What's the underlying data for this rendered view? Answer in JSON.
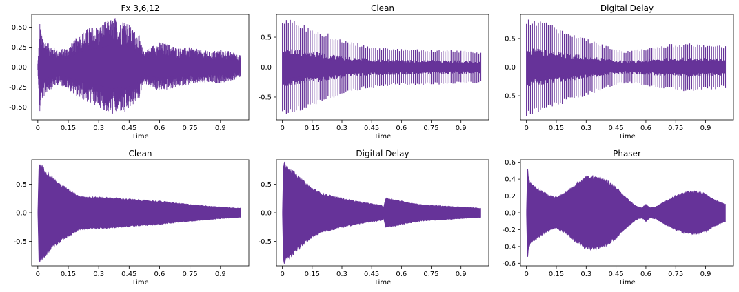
{
  "figure": {
    "background": "#ffffff",
    "waveform_color": "#663399"
  },
  "chart_data": [
    {
      "type": "area",
      "title": "Fx 3,6,12",
      "xlabel": "Time",
      "ylabel": "",
      "xlim": [
        -0.03,
        1.04
      ],
      "ylim": [
        -0.66,
        0.66
      ],
      "xticks": [
        "0",
        "0.15",
        "0.3",
        "0.45",
        "0.6",
        "0.75",
        "0.9"
      ],
      "yticks": [
        "-0.50",
        "-0.25",
        "0.00",
        "0.25",
        "0.50"
      ],
      "envelope_points": {
        "x": [
          0,
          0.01,
          0.02,
          0.05,
          0.1,
          0.15,
          0.2,
          0.25,
          0.3,
          0.35,
          0.38,
          0.4,
          0.43,
          0.46,
          0.5,
          0.52,
          0.55,
          0.6,
          0.65,
          0.7,
          0.75,
          0.8,
          0.85,
          0.9,
          0.95,
          1.0
        ],
        "upper": [
          0.05,
          0.58,
          0.4,
          0.3,
          0.22,
          0.25,
          0.4,
          0.5,
          0.52,
          0.6,
          0.63,
          0.55,
          0.62,
          0.5,
          0.4,
          0.2,
          0.25,
          0.32,
          0.28,
          0.24,
          0.25,
          0.22,
          0.2,
          0.22,
          0.2,
          0.15
        ],
        "lower": [
          -0.05,
          -0.6,
          -0.42,
          -0.3,
          -0.22,
          -0.28,
          -0.38,
          -0.45,
          -0.5,
          -0.58,
          -0.6,
          -0.55,
          -0.6,
          -0.5,
          -0.4,
          -0.2,
          -0.25,
          -0.3,
          -0.28,
          -0.24,
          -0.22,
          -0.2,
          -0.2,
          -0.2,
          -0.18,
          -0.12
        ]
      },
      "style": "dense",
      "grid": false
    },
    {
      "type": "area",
      "title": "Clean",
      "xlabel": "Time",
      "ylabel": "",
      "xlim": [
        -0.03,
        1.04
      ],
      "ylim": [
        -0.88,
        0.88
      ],
      "xticks": [
        "0",
        "0.15",
        "0.3",
        "0.45",
        "0.6",
        "0.75",
        "0.9"
      ],
      "yticks": [
        "-0.5",
        "0.0",
        "0.5"
      ],
      "envelope_points": {
        "x": [
          0,
          0.03,
          0.05,
          0.1,
          0.2,
          0.3,
          0.4,
          0.5,
          0.6,
          0.7,
          0.8,
          0.9,
          1.0
        ],
        "upper": [
          0.75,
          0.82,
          0.8,
          0.72,
          0.6,
          0.47,
          0.38,
          0.33,
          0.31,
          0.3,
          0.29,
          0.28,
          0.26
        ],
        "lower": [
          -0.75,
          -0.83,
          -0.8,
          -0.72,
          -0.6,
          -0.47,
          -0.38,
          -0.33,
          -0.31,
          -0.3,
          -0.29,
          -0.28,
          -0.26
        ]
      },
      "style": "spiky",
      "grid": false
    },
    {
      "type": "area",
      "title": "Digital Delay",
      "xlabel": "Time",
      "ylabel": "",
      "xlim": [
        -0.03,
        1.04
      ],
      "ylim": [
        -0.92,
        0.92
      ],
      "xticks": [
        "0",
        "0.15",
        "0.3",
        "0.45",
        "0.6",
        "0.75",
        "0.9"
      ],
      "yticks": [
        "-0.5",
        "0.0",
        "0.5"
      ],
      "envelope_points": {
        "x": [
          0,
          0.03,
          0.1,
          0.2,
          0.3,
          0.4,
          0.45,
          0.5,
          0.6,
          0.7,
          0.8,
          0.9,
          1.0
        ],
        "upper": [
          0.85,
          0.82,
          0.78,
          0.62,
          0.5,
          0.38,
          0.32,
          0.28,
          0.33,
          0.4,
          0.42,
          0.4,
          0.37
        ],
        "lower": [
          -0.86,
          -0.82,
          -0.78,
          -0.62,
          -0.5,
          -0.38,
          -0.32,
          -0.28,
          -0.33,
          -0.4,
          -0.42,
          -0.4,
          -0.37
        ]
      },
      "style": "spiky",
      "grid": false
    },
    {
      "type": "area",
      "title": "Clean",
      "xlabel": "Time",
      "ylabel": "",
      "xlim": [
        -0.03,
        1.04
      ],
      "ylim": [
        -0.93,
        0.93
      ],
      "xticks": [
        "0",
        "0.15",
        "0.3",
        "0.45",
        "0.6",
        "0.75",
        "0.9"
      ],
      "yticks": [
        "-0.5",
        "0.0",
        "0.5"
      ],
      "envelope_points": {
        "x": [
          0,
          0.005,
          0.02,
          0.05,
          0.1,
          0.15,
          0.2,
          0.25,
          0.3,
          0.4,
          0.5,
          0.6,
          0.7,
          0.8,
          0.9,
          1.0
        ],
        "upper": [
          0.02,
          0.85,
          0.8,
          0.68,
          0.52,
          0.4,
          0.3,
          0.27,
          0.27,
          0.25,
          0.22,
          0.2,
          0.16,
          0.13,
          0.1,
          0.08
        ],
        "lower": [
          -0.02,
          -0.85,
          -0.8,
          -0.68,
          -0.52,
          -0.4,
          -0.3,
          -0.27,
          -0.27,
          -0.25,
          -0.22,
          -0.2,
          -0.16,
          -0.13,
          -0.1,
          -0.08
        ]
      },
      "style": "solid",
      "grid": false
    },
    {
      "type": "area",
      "title": "Digital Delay",
      "xlabel": "Time",
      "ylabel": "",
      "xlim": [
        -0.03,
        1.04
      ],
      "ylim": [
        -0.93,
        0.93
      ],
      "xticks": [
        "0",
        "0.15",
        "0.3",
        "0.45",
        "0.6",
        "0.75",
        "0.9"
      ],
      "yticks": [
        "-0.5",
        "0.0",
        "0.5"
      ],
      "envelope_points": {
        "x": [
          0,
          0.005,
          0.02,
          0.05,
          0.1,
          0.15,
          0.2,
          0.3,
          0.4,
          0.5,
          0.51,
          0.52,
          0.55,
          0.6,
          0.7,
          0.8,
          0.9,
          1.0
        ],
        "upper": [
          0.02,
          0.87,
          0.82,
          0.72,
          0.56,
          0.42,
          0.33,
          0.25,
          0.18,
          0.13,
          0.1,
          0.25,
          0.24,
          0.2,
          0.14,
          0.12,
          0.1,
          0.08
        ],
        "lower": [
          -0.02,
          -0.87,
          -0.82,
          -0.72,
          -0.56,
          -0.42,
          -0.33,
          -0.25,
          -0.18,
          -0.13,
          -0.1,
          -0.25,
          -0.24,
          -0.2,
          -0.14,
          -0.12,
          -0.1,
          -0.08
        ]
      },
      "style": "solid",
      "grid": false
    },
    {
      "type": "area",
      "title": "Phaser",
      "xlabel": "Time",
      "ylabel": "",
      "xlim": [
        -0.03,
        1.04
      ],
      "ylim": [
        -0.63,
        0.63
      ],
      "xticks": [
        "0",
        "0.15",
        "0.3",
        "0.45",
        "0.6",
        "0.75",
        "0.9"
      ],
      "yticks": [
        "-0.6",
        "-0.4",
        "-0.2",
        "0.0",
        "0.2",
        "0.4",
        "0.6"
      ],
      "envelope_points": {
        "x": [
          0,
          0.005,
          0.01,
          0.02,
          0.05,
          0.1,
          0.15,
          0.2,
          0.25,
          0.3,
          0.35,
          0.4,
          0.45,
          0.5,
          0.55,
          0.58,
          0.6,
          0.62,
          0.65,
          0.7,
          0.75,
          0.8,
          0.85,
          0.9,
          0.95,
          1.0
        ],
        "upper": [
          0.02,
          0.57,
          0.42,
          0.35,
          0.3,
          0.22,
          0.18,
          0.24,
          0.34,
          0.42,
          0.42,
          0.38,
          0.3,
          0.18,
          0.08,
          0.06,
          0.1,
          0.06,
          0.07,
          0.14,
          0.2,
          0.24,
          0.25,
          0.22,
          0.15,
          0.1
        ],
        "lower": [
          -0.02,
          -0.57,
          -0.42,
          -0.35,
          -0.3,
          -0.22,
          -0.18,
          -0.24,
          -0.34,
          -0.42,
          -0.42,
          -0.38,
          -0.3,
          -0.18,
          -0.08,
          -0.06,
          -0.1,
          -0.06,
          -0.07,
          -0.14,
          -0.2,
          -0.24,
          -0.25,
          -0.22,
          -0.15,
          -0.1
        ]
      },
      "style": "solid",
      "grid": false
    }
  ]
}
